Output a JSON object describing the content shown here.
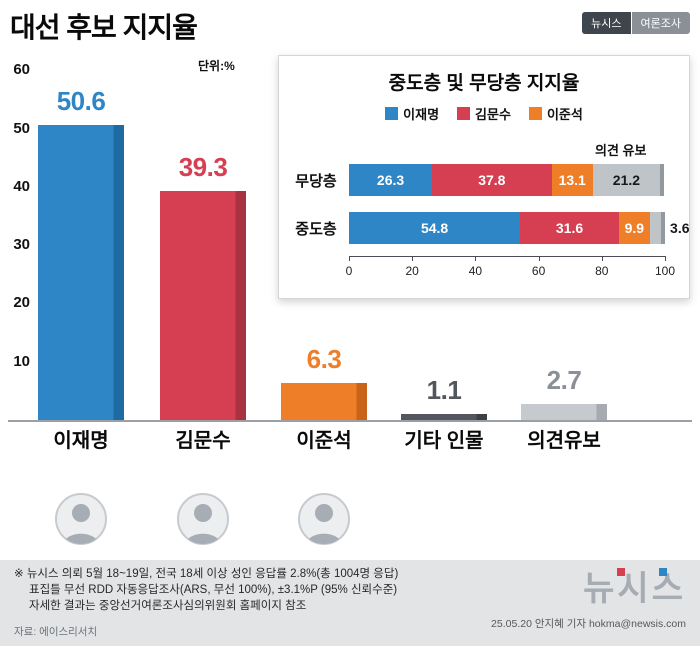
{
  "header": {
    "badge_left": "뉴시스",
    "badge_right": "여론조사"
  },
  "chart_data": [
    {
      "type": "bar",
      "title": "대선 후보 지지율",
      "unit_label": "단위:%",
      "categories": [
        "이재명",
        "김문수",
        "이준석",
        "기타 인물",
        "의견유보"
      ],
      "values": [
        50.6,
        39.3,
        6.3,
        1.1,
        2.7
      ],
      "colors": [
        "#2e86c7",
        "#d63f52",
        "#ef7e29",
        "#53575d",
        "#c6cacf"
      ],
      "colors_dark": [
        "#1e6aa3",
        "#a93241",
        "#c96318",
        "#3c4045",
        "#a6abb1"
      ],
      "value_label_colors": [
        "#2e86c7",
        "#d63f52",
        "#ef7e29",
        "#53575d",
        "#8b9097"
      ],
      "ylim": [
        0,
        60
      ],
      "yticks": [
        60,
        50,
        40,
        30,
        20,
        10
      ],
      "grid": false,
      "legend": false
    },
    {
      "type": "bar",
      "subtype": "stacked-horizontal",
      "title": "중도층 및 무당층 지지율",
      "categories": [
        "무당층",
        "중도층"
      ],
      "series": [
        {
          "name": "이재명",
          "color": "#2e86c7",
          "values": [
            26.3,
            54.8
          ]
        },
        {
          "name": "김문수",
          "color": "#d63f52",
          "values": [
            37.8,
            31.6
          ]
        },
        {
          "name": "이준석",
          "color": "#ef7e29",
          "values": [
            13.1,
            9.9
          ]
        },
        {
          "name": "의견 유보",
          "color": "#bfc4c9",
          "values": [
            21.2,
            3.6
          ],
          "dark_text": true
        }
      ],
      "xlim": [
        0,
        100
      ],
      "xticks": [
        0,
        20,
        40,
        60,
        80,
        100
      ],
      "legend_position": "top-center"
    }
  ],
  "footer": {
    "note_line1": "※ 뉴시스 의뢰 5월 18~19일, 전국 18세 이상 성인 응답률 2.8%(총 1004명 응답)",
    "note_line2": "표집틀 무선 RDD  자동응답조사(ARS, 무선 100%),  ±3.1%P (95% 신뢰수준)",
    "note_line3": "자세한 결과는 중앙선거여론조사심의위원회 홈페이지 참조",
    "source": "자료: 에이스리서치",
    "logo_text": "뉴시스",
    "credit": "25.05.20 안지혜 기자 hokma@newsis.com"
  }
}
